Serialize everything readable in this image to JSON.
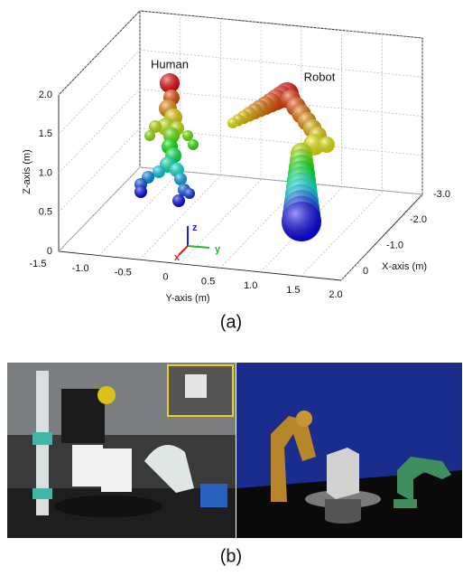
{
  "panel_a": {
    "labels": {
      "human": "Human",
      "robot": "Robot"
    },
    "z_axis": {
      "title": "Z-axis (m)",
      "ticks": [
        "2.0",
        "1.5",
        "1.0",
        "0.5",
        "0"
      ]
    },
    "y_axis": {
      "title": "Y-axis (m)",
      "ticks": [
        "-1.5",
        "-1.0",
        "-0.5",
        "0",
        "0.5",
        "1.0",
        "1.5",
        "2.0"
      ]
    },
    "x_axis": {
      "title": "X-axis (m)",
      "ticks": [
        "-3.0",
        "-2.0",
        "-1.0",
        "0"
      ]
    },
    "triad": {
      "z": "z",
      "y": "y",
      "x": "x"
    },
    "caption": "(a)"
  },
  "panel_b": {
    "caption": "(b)"
  }
}
